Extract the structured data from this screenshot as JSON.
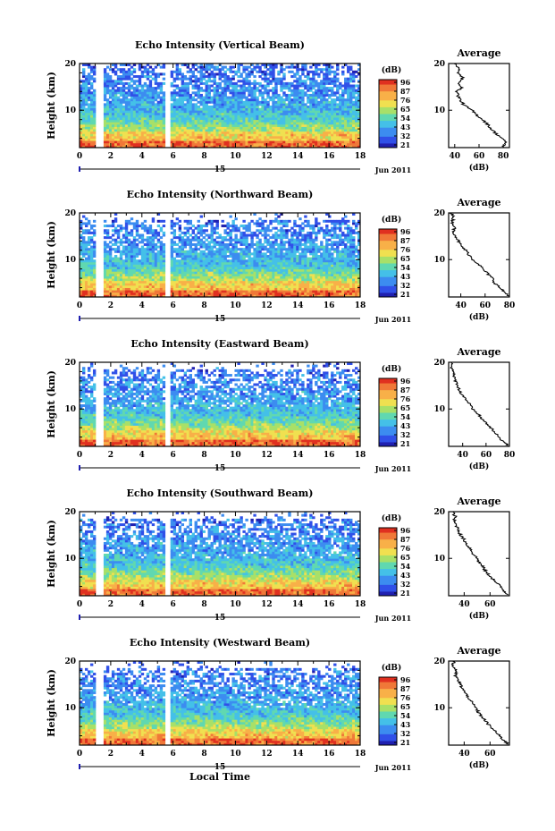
{
  "chart_data": [
    {
      "type": "heatmap",
      "title": "Echo Intensity (Vertical Beam)",
      "ylabel": "Height (km)",
      "ylim": [
        2,
        20
      ],
      "yticks": [
        "20",
        "10"
      ],
      "xlim": [
        0,
        18
      ],
      "xticks": [
        "0",
        "2",
        "4",
        "6",
        "8",
        "10",
        "12",
        "14",
        "16",
        "18"
      ],
      "date_label": "15",
      "month_label": "Jun 2011",
      "colorbar_unit": "(dB)",
      "colorbar_ticks": [
        "96",
        "87",
        "76",
        "65",
        "54",
        "43",
        "32",
        "21"
      ],
      "data_gaps_hours": [
        [
          1.0,
          1.55
        ],
        [
          5.4,
          5.8
        ]
      ],
      "profile": {
        "title": "Average",
        "xlabel": "(dB)",
        "xticks": [
          "40",
          "60",
          "80"
        ],
        "xlim": [
          35,
          85
        ],
        "yticks": [
          "20",
          "10"
        ],
        "ylim": [
          2,
          20
        ],
        "points": [
          [
            20,
            40
          ],
          [
            19,
            44
          ],
          [
            18,
            42
          ],
          [
            17,
            47
          ],
          [
            16,
            43
          ],
          [
            15,
            46
          ],
          [
            14,
            42
          ],
          [
            13,
            43
          ],
          [
            12,
            45
          ],
          [
            11,
            48
          ],
          [
            10,
            54
          ],
          [
            9,
            58
          ],
          [
            8,
            63
          ],
          [
            7,
            67
          ],
          [
            6,
            70
          ],
          [
            5,
            74
          ],
          [
            4,
            79
          ],
          [
            3,
            82
          ],
          [
            2.2,
            80
          ]
        ]
      }
    },
    {
      "type": "heatmap",
      "title": "Echo Intensity (Northward Beam)",
      "ylabel": "Height (km)",
      "ylim": [
        2,
        20
      ],
      "yticks": [
        "20",
        "10"
      ],
      "xlim": [
        0,
        18
      ],
      "xticks": [
        "0",
        "2",
        "4",
        "6",
        "8",
        "10",
        "12",
        "14",
        "16",
        "18"
      ],
      "date_label": "15",
      "month_label": "Jun 2011",
      "colorbar_unit": "(dB)",
      "colorbar_ticks": [
        "96",
        "87",
        "76",
        "65",
        "54",
        "43",
        "32",
        "21"
      ],
      "data_gaps_hours": [
        [
          1.0,
          1.55
        ],
        [
          5.4,
          5.8
        ]
      ],
      "profile": {
        "title": "Average",
        "xlabel": "(dB)",
        "xticks": [
          "40",
          "60",
          "80"
        ],
        "xlim": [
          30,
          80
        ],
        "yticks": [
          "20",
          "10"
        ],
        "ylim": [
          2,
          20
        ],
        "points": [
          [
            20,
            32
          ],
          [
            19,
            34
          ],
          [
            18,
            33
          ],
          [
            17,
            35
          ],
          [
            16,
            34
          ],
          [
            15,
            36
          ],
          [
            14,
            38
          ],
          [
            13,
            40
          ],
          [
            12,
            44
          ],
          [
            11,
            47
          ],
          [
            10,
            50
          ],
          [
            9,
            55
          ],
          [
            8,
            58
          ],
          [
            7,
            62
          ],
          [
            6,
            66
          ],
          [
            5,
            68
          ],
          [
            4,
            72
          ],
          [
            3,
            76
          ],
          [
            2.2,
            80
          ]
        ]
      }
    },
    {
      "type": "heatmap",
      "title": "Echo Intensity (Eastward Beam)",
      "ylabel": "Height (km)",
      "ylim": [
        2,
        20
      ],
      "yticks": [
        "20",
        "10"
      ],
      "xlim": [
        0,
        18
      ],
      "xticks": [
        "0",
        "2",
        "4",
        "6",
        "8",
        "10",
        "12",
        "14",
        "16",
        "18"
      ],
      "date_label": "15",
      "month_label": "Jun 2011",
      "colorbar_unit": "(dB)",
      "colorbar_ticks": [
        "96",
        "87",
        "76",
        "65",
        "54",
        "43",
        "32",
        "21"
      ],
      "data_gaps_hours": [
        [
          1.0,
          1.55
        ],
        [
          5.4,
          5.8
        ]
      ],
      "profile": {
        "title": "Average",
        "xlabel": "(dB)",
        "xticks": [
          "40",
          "60",
          "80"
        ],
        "xlim": [
          28,
          80
        ],
        "yticks": [
          "20",
          "10"
        ],
        "ylim": [
          2,
          20
        ],
        "points": [
          [
            20,
            31
          ],
          [
            19,
            30
          ],
          [
            18,
            33
          ],
          [
            17,
            32
          ],
          [
            16,
            34
          ],
          [
            15,
            36
          ],
          [
            14,
            37
          ],
          [
            13,
            40
          ],
          [
            12,
            43
          ],
          [
            11,
            46
          ],
          [
            10,
            48
          ],
          [
            9,
            53
          ],
          [
            8,
            56
          ],
          [
            7,
            60
          ],
          [
            6,
            64
          ],
          [
            5,
            67
          ],
          [
            4,
            71
          ],
          [
            3,
            75
          ],
          [
            2.2,
            79
          ]
        ]
      }
    },
    {
      "type": "heatmap",
      "title": "Echo Intensity (Southward Beam)",
      "ylabel": "Height (km)",
      "ylim": [
        2,
        20
      ],
      "yticks": [
        "20",
        "10"
      ],
      "xlim": [
        0,
        18
      ],
      "xticks": [
        "0",
        "2",
        "4",
        "6",
        "8",
        "10",
        "12",
        "14",
        "16",
        "18"
      ],
      "date_label": "15",
      "month_label": "Jun 2011",
      "colorbar_unit": "(dB)",
      "colorbar_ticks": [
        "96",
        "87",
        "76",
        "65",
        "54",
        "43",
        "32",
        "21"
      ],
      "data_gaps_hours": [
        [
          1.0,
          1.55
        ],
        [
          5.4,
          5.8
        ]
      ],
      "profile": {
        "title": "Average",
        "xlabel": "(dB)",
        "xticks": [
          "40",
          "60"
        ],
        "xlim": [
          28,
          75
        ],
        "yticks": [
          "20",
          "10"
        ],
        "ylim": [
          2,
          20
        ],
        "points": [
          [
            20,
            31
          ],
          [
            19,
            33
          ],
          [
            18,
            32
          ],
          [
            17,
            34
          ],
          [
            16,
            36
          ],
          [
            15,
            37
          ],
          [
            14,
            40
          ],
          [
            13,
            42
          ],
          [
            12,
            45
          ],
          [
            11,
            47
          ],
          [
            10,
            50
          ],
          [
            9,
            52
          ],
          [
            8,
            55
          ],
          [
            7,
            57
          ],
          [
            6,
            61
          ],
          [
            5,
            64
          ],
          [
            4,
            68
          ],
          [
            3,
            71
          ],
          [
            2.2,
            74
          ]
        ]
      }
    },
    {
      "type": "heatmap",
      "title": "Echo Intensity (Westward Beam)",
      "ylabel": "Height (km)",
      "ylim": [
        2,
        20
      ],
      "yticks": [
        "20",
        "10"
      ],
      "xlim": [
        0,
        18
      ],
      "xticks": [
        "0",
        "2",
        "4",
        "6",
        "8",
        "10",
        "12",
        "14",
        "16",
        "18"
      ],
      "date_label": "15",
      "month_label": "Jun 2011",
      "xlabel": "Local Time",
      "colorbar_unit": "(dB)",
      "colorbar_ticks": [
        "96",
        "87",
        "76",
        "65",
        "54",
        "43",
        "32",
        "21"
      ],
      "data_gaps_hours": [
        [
          1.0,
          1.55
        ],
        [
          5.4,
          5.8
        ]
      ],
      "profile": {
        "title": "Average",
        "xlabel": "(dB)",
        "xticks": [
          "40",
          "60"
        ],
        "xlim": [
          28,
          75
        ],
        "yticks": [
          "20",
          "10"
        ],
        "ylim": [
          2,
          20
        ],
        "points": [
          [
            20,
            32
          ],
          [
            19,
            31
          ],
          [
            18,
            34
          ],
          [
            17,
            33
          ],
          [
            16,
            35
          ],
          [
            15,
            37
          ],
          [
            14,
            39
          ],
          [
            13,
            41
          ],
          [
            12,
            44
          ],
          [
            11,
            46
          ],
          [
            10,
            49
          ],
          [
            9,
            51
          ],
          [
            8,
            54
          ],
          [
            7,
            57
          ],
          [
            6,
            60
          ],
          [
            5,
            64
          ],
          [
            4,
            67
          ],
          [
            3,
            71
          ],
          [
            2.2,
            74
          ]
        ]
      }
    }
  ],
  "colors": {
    "colormap": [
      "#2020b0",
      "#3050e8",
      "#3c8cf0",
      "#44c0e8",
      "#60d8b0",
      "#a8e068",
      "#f0e050",
      "#f8b048",
      "#f07838",
      "#e03020"
    ]
  }
}
